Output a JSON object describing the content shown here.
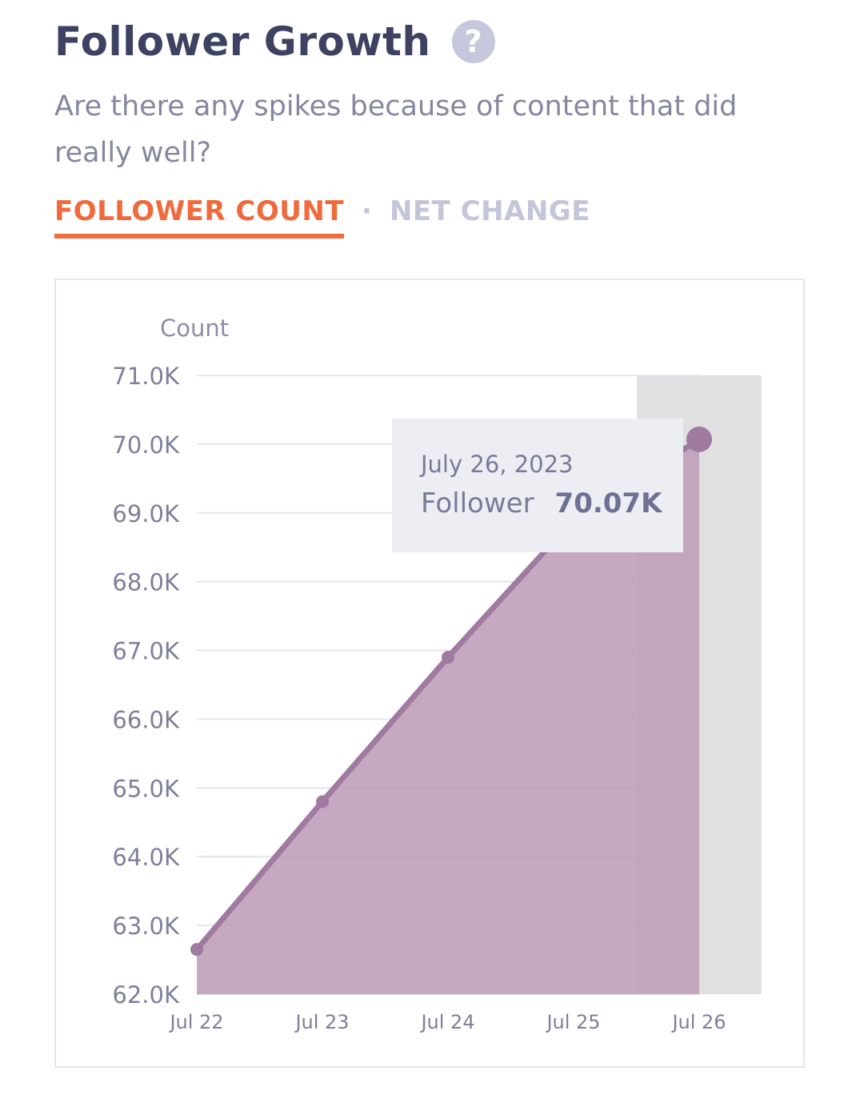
{
  "header": {
    "title": "Follower Growth",
    "help_symbol": "?",
    "subtitle": "Are there any spikes because of content that did really well?"
  },
  "tabs": [
    {
      "label": "FOLLOWER COUNT",
      "active": true
    },
    {
      "label": "NET CHANGE",
      "active": false
    }
  ],
  "tab_separator": "·",
  "colors": {
    "accent": "#f06a3c",
    "series_line": "#a07aa0",
    "series_fill": "#bd9db7",
    "highlight_band": "#e0e0e0"
  },
  "tooltip": {
    "date": "July 26, 2023",
    "label": "Follower",
    "value": "70.07K"
  },
  "chart_data": {
    "type": "area",
    "ylabel": "Count",
    "xlabel": "",
    "categories": [
      "Jul 22",
      "Jul 23",
      "Jul 24",
      "Jul 25",
      "Jul 26"
    ],
    "series": [
      {
        "values": [
          62.65,
          64.8,
          66.9,
          68.9,
          70.07
        ]
      }
    ],
    "ylim": [
      62.0,
      71.0
    ],
    "yticks": [
      "62.0K",
      "63.0K",
      "64.0K",
      "65.0K",
      "66.0K",
      "67.0K",
      "68.0K",
      "69.0K",
      "70.0K",
      "71.0K"
    ],
    "grid": true,
    "highlighted_category": "Jul 26"
  }
}
